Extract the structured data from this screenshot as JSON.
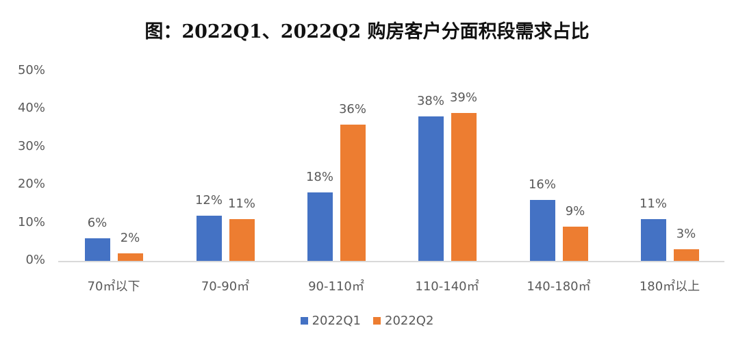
{
  "title": "图：2022Q1、2022Q2 购房客户分面积段需求占比",
  "colors": {
    "q1": "#4472C4",
    "q2": "#ED7D31"
  },
  "legend": [
    {
      "label": "2022Q1",
      "color": "#4472C4"
    },
    {
      "label": "2022Q2",
      "color": "#ED7D31"
    }
  ],
  "yticks": [
    "0%",
    "10%",
    "20%",
    "30%",
    "40%",
    "50%"
  ],
  "chart_data": {
    "type": "bar",
    "title": "图：2022Q1、2022Q2 购房客户分面积段需求占比",
    "xlabel": "",
    "ylabel": "",
    "ylim": [
      0,
      50
    ],
    "grid": false,
    "legend_position": "bottom",
    "categories": [
      "70㎡以下",
      "70-90㎡",
      "90-110㎡",
      "110-140㎡",
      "140-180㎡",
      "180㎡以上"
    ],
    "series": [
      {
        "name": "2022Q1",
        "values": [
          6,
          12,
          18,
          38,
          16,
          11
        ],
        "labels": [
          "6%",
          "12%",
          "18%",
          "38%",
          "16%",
          "11%"
        ]
      },
      {
        "name": "2022Q2",
        "values": [
          2,
          11,
          36,
          39,
          9,
          3
        ],
        "labels": [
          "2%",
          "11%",
          "36%",
          "39%",
          "9%",
          "3%"
        ]
      }
    ]
  }
}
